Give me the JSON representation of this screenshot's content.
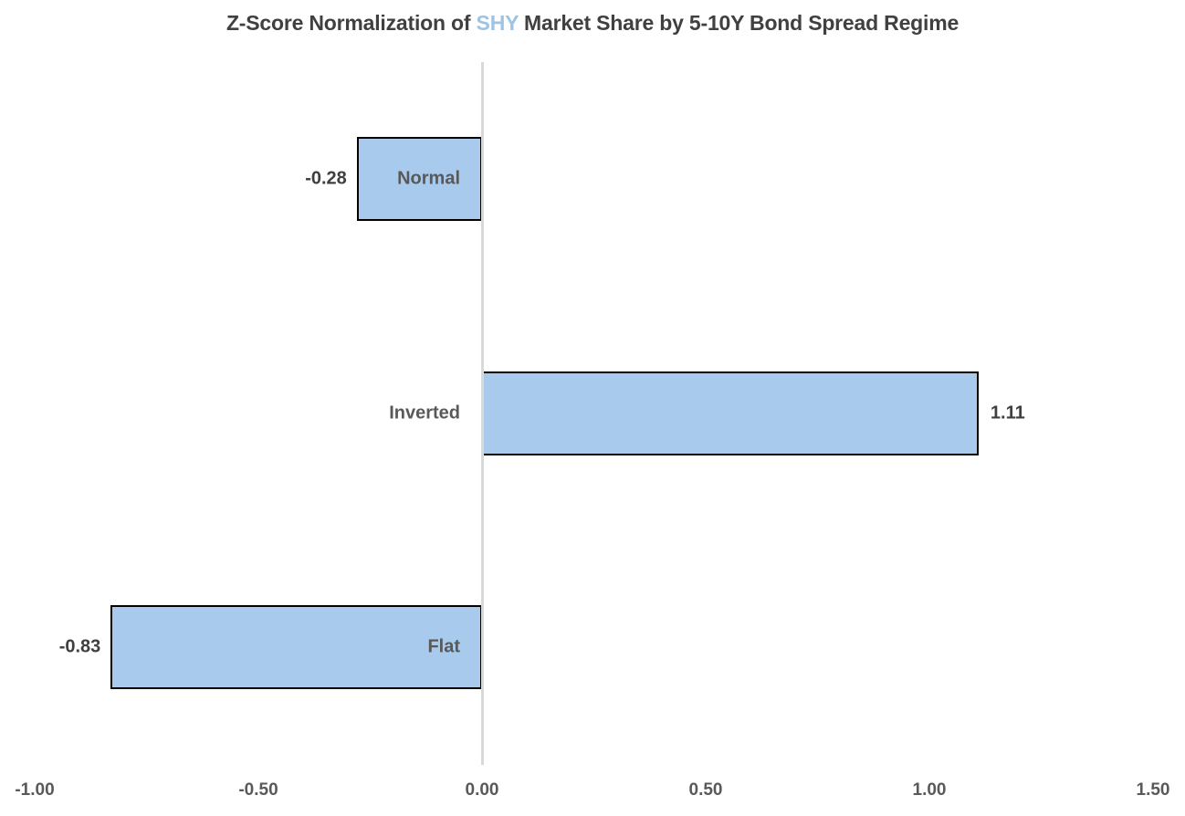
{
  "title": {
    "prefix": "Z-Score Normalization of ",
    "ticker": "SHY",
    "suffix": " Market Share by 5-10Y Bond Spread Regime"
  },
  "colors": {
    "bar_fill": "#A7CAED",
    "bar_border": "#000000",
    "axis_line": "#D9D9D9",
    "title_text": "#404040",
    "ticker_text": "#9DC3E6",
    "category_text": "#595959",
    "value_text": "#3F3F3F",
    "tick_text": "#595959",
    "background": "#FFFFFF"
  },
  "chart_data": {
    "type": "bar",
    "orientation": "horizontal",
    "title": "Z-Score Normalization of SHY Market Share by 5-10Y Bond Spread Regime",
    "categories": [
      "Normal",
      "Inverted",
      "Flat"
    ],
    "values": [
      -0.28,
      1.11,
      -0.83
    ],
    "value_labels": [
      "-0.28",
      "1.11",
      "-0.83"
    ],
    "xlabel": "",
    "ylabel": "",
    "xlim": [
      -1.0,
      1.5
    ],
    "x_ticks": [
      "-1.00",
      "-0.50",
      "0.00",
      "0.50",
      "1.00",
      "1.50"
    ],
    "x_tick_values": [
      -1.0,
      -0.5,
      0.0,
      0.5,
      1.0,
      1.5
    ],
    "grid": false,
    "legend": false,
    "zero_axis_line": true
  }
}
